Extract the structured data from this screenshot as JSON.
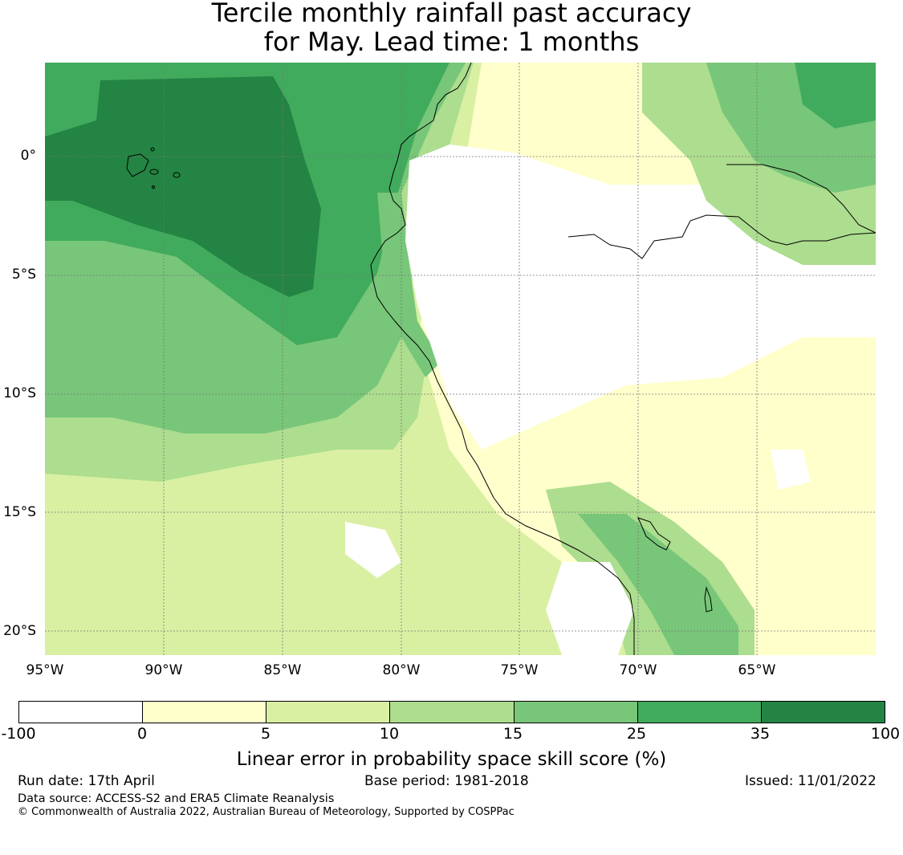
{
  "title_line1": "Tercile monthly rainfall past accuracy",
  "title_line2": "for May. Lead time: 1 months",
  "map": {
    "lat_labels": [
      "0°",
      "5°S",
      "10°S",
      "15°S",
      "20°S"
    ],
    "lon_labels": [
      "95°W",
      "90°W",
      "85°W",
      "80°W",
      "75°W",
      "70°W",
      "65°W"
    ],
    "colors": {
      "white": "#ffffff",
      "pale_yellow": "#ffffcc",
      "light_green": "#d9f0a3",
      "green_10_15": "#addd8e",
      "green_15_25": "#78c679",
      "green_25_35": "#41ab5d",
      "dark_green": "#238443"
    }
  },
  "colorbar": {
    "ticks": [
      "-100",
      "0",
      "5",
      "10",
      "15",
      "25",
      "35",
      "100"
    ],
    "colors": [
      "#ffffff",
      "#ffffcc",
      "#d9f0a3",
      "#addd8e",
      "#78c679",
      "#41ab5d",
      "#238443"
    ],
    "label": "Linear error in probability space skill score (%)"
  },
  "footer": {
    "run_date": "Run date: 17th April",
    "base_period": "Base period: 1981-2018",
    "issued": "Issued: 11/01/2022",
    "data_source": "Data source: ACCESS-S2 and ERA5 Climate Reanalysis",
    "copyright": "© Commonwealth of Australia 2022, Australian Bureau of Meteorology, Supported by COSPPac"
  }
}
